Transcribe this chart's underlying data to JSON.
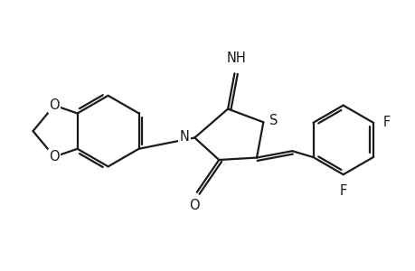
{
  "background_color": "#ffffff",
  "line_color": "#1a1a1a",
  "line_width": 1.6,
  "font_size_atoms": 10.5,
  "figsize": [
    4.6,
    3.0
  ],
  "dpi": 100,
  "xlim": [
    0,
    9.2
  ],
  "ylim": [
    0,
    6.0
  ]
}
